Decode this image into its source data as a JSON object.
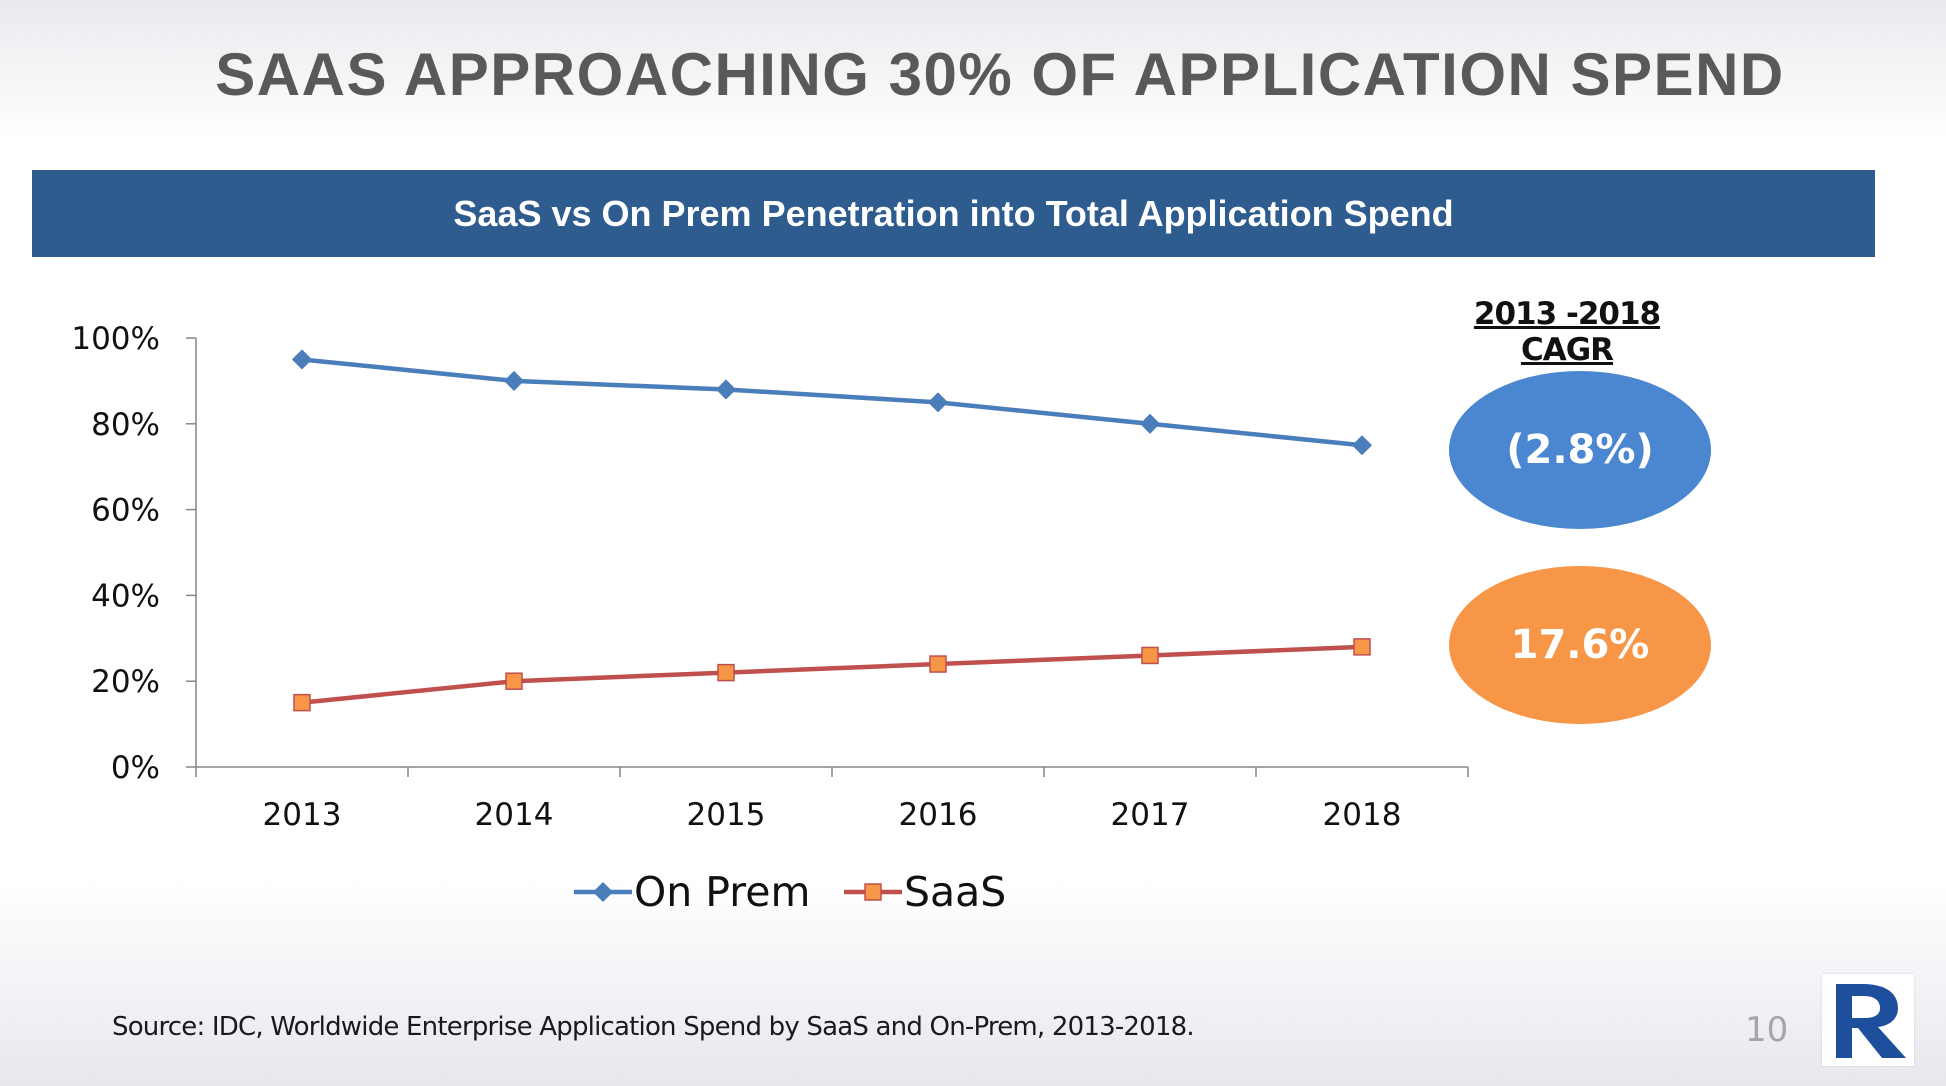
{
  "page": {
    "title": "SAAS APPROACHING 30% OF APPLICATION SPEND",
    "banner": "SaaS vs On Prem Penetration into Total Application Spend",
    "source": "Source: IDC, Worldwide Enterprise Application Spend by SaaS and On-Prem, 2013-2018.",
    "page_number": "10",
    "logo_icon": "r-monogram-logo"
  },
  "cagr": {
    "heading": "2013 -2018 CAGR",
    "on_prem": "(2.8%)",
    "saas": "17.6%"
  },
  "colors": {
    "banner": "#2e5c8f",
    "on_prem_line": "#4a7ebb",
    "saas_line": "#c0504d",
    "saas_marker": "#f79646",
    "on_prem_badge": "#4a87d0",
    "saas_badge": "#f79646"
  },
  "chart_data": {
    "type": "line",
    "title": "",
    "xlabel": "",
    "ylabel": "",
    "categories": [
      "2013",
      "2014",
      "2015",
      "2016",
      "2017",
      "2018"
    ],
    "ylim": [
      0,
      100
    ],
    "yticks": [
      "0%",
      "20%",
      "40%",
      "60%",
      "80%",
      "100%"
    ],
    "grid": false,
    "legend_position": "bottom",
    "series": [
      {
        "name": "On Prem",
        "values": [
          95,
          90,
          88,
          85,
          80,
          75
        ],
        "marker": "diamond"
      },
      {
        "name": "SaaS",
        "values": [
          15,
          20,
          22,
          24,
          26,
          28
        ],
        "marker": "square"
      }
    ]
  }
}
